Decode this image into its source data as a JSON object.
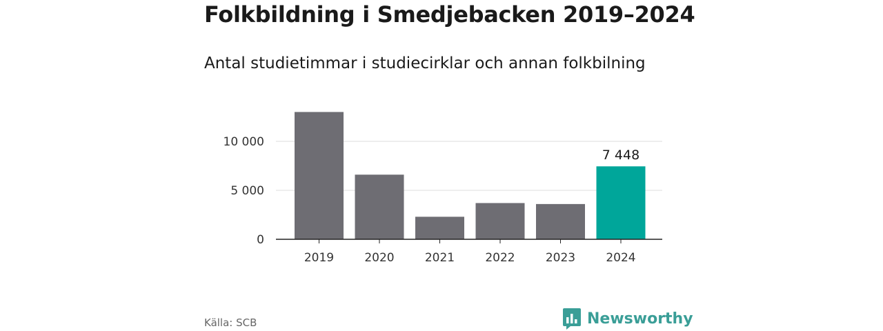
{
  "header": {
    "title": "Folkbildning i Smedjebacken 2019–2024",
    "subtitle": "Antal studietimmar i studiecirklar och annan folkbilning"
  },
  "footer": {
    "source": "Källa: SCB",
    "brand": "Newsworthy",
    "brand_icon": "bar-chart-logo-icon"
  },
  "colors": {
    "bar_default": "#6e6d73",
    "bar_highlight": "#00a69a",
    "grid": "#dddddd",
    "axis": "#222222",
    "brand": "#3a9e97"
  },
  "chart_data": {
    "type": "bar",
    "title": "Folkbildning i Smedjebacken 2019–2024",
    "subtitle": "Antal studietimmar i studiecirklar och annan folkbilning",
    "categories": [
      "2019",
      "2020",
      "2021",
      "2022",
      "2023",
      "2024"
    ],
    "values": [
      13000,
      6600,
      2300,
      3700,
      3600,
      7448
    ],
    "highlight_index": 5,
    "data_labels": [
      {
        "index": 5,
        "text": "7 448"
      }
    ],
    "ylim": [
      0,
      13000
    ],
    "yticks": [
      0,
      5000,
      10000
    ],
    "ytick_labels": [
      "0",
      "5 000",
      "10 000"
    ],
    "xlabel": "",
    "ylabel": "",
    "grid": true,
    "legend": "none"
  }
}
